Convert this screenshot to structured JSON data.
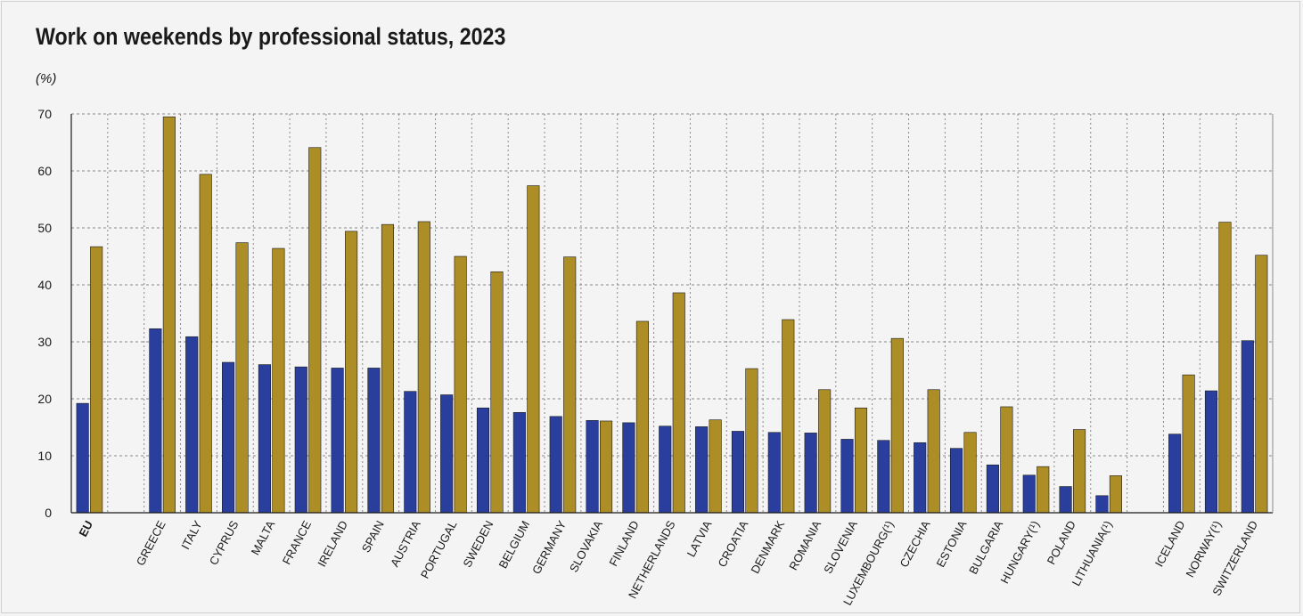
{
  "chart_data": {
    "type": "bar",
    "title": "Work on weekends by professional status, 2023",
    "unit": "(%)",
    "ylim": [
      0,
      70
    ],
    "yticks": [
      0,
      10,
      20,
      30,
      40,
      50,
      60,
      70
    ],
    "grid": true,
    "colors": {
      "series_a": "#2a3f9d",
      "series_b": "#ad8d25",
      "grid": "#8a8a8a",
      "axis": "#1a1a1a"
    },
    "categories": [
      "EU",
      "GREECE",
      "ITALY",
      "CYPRUS",
      "MALTA",
      "FRANCE",
      "IRELAND",
      "SPAIN",
      "AUSTRIA",
      "PORTUGAL",
      "SWEDEN",
      "BELGIUM",
      "GERMANY",
      "SLOVAKIA",
      "FINLAND",
      "NETHERLANDS",
      "LATVIA",
      "CROATIA",
      "DENMARK",
      "ROMANIA",
      "SLOVENIA",
      "LUXEMBOURG(¹)",
      "CZECHIA",
      "ESTONIA",
      "BULGARIA",
      "HUNGARY(¹)",
      "POLAND",
      "LITHUANIA(¹)",
      "ICELAND",
      "NORWAY(¹)",
      "SWITZERLAND"
    ],
    "series": [
      {
        "values": [
          19.2,
          32.3,
          30.9,
          26.4,
          26.0,
          25.6,
          25.4,
          25.4,
          21.3,
          20.7,
          18.4,
          17.6,
          16.9,
          16.2,
          15.8,
          15.2,
          15.1,
          14.3,
          14.1,
          14.0,
          12.9,
          12.7,
          12.3,
          11.3,
          8.4,
          6.6,
          4.6,
          3.0,
          13.8,
          21.4,
          30.2
        ]
      },
      {
        "values": [
          46.7,
          69.5,
          59.4,
          47.4,
          46.4,
          64.1,
          49.4,
          50.6,
          51.1,
          45.0,
          42.3,
          57.4,
          44.9,
          16.1,
          33.6,
          38.6,
          16.3,
          25.3,
          33.9,
          21.6,
          18.4,
          30.6,
          21.6,
          14.1,
          18.6,
          8.1,
          14.6,
          6.5,
          24.2,
          51.0,
          45.2
        ]
      }
    ]
  }
}
